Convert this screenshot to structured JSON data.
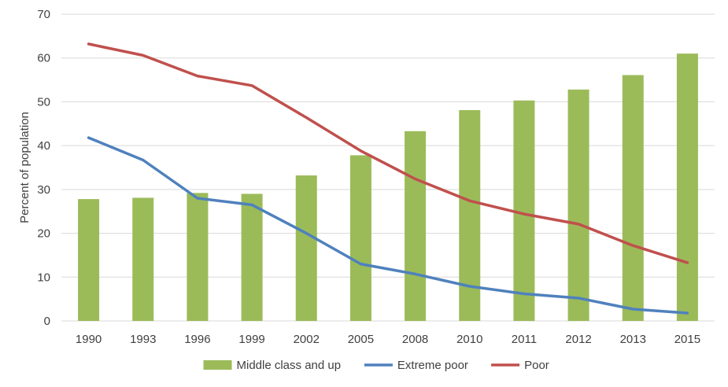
{
  "chart_data": {
    "type": "bar",
    "categories": [
      "1990",
      "1993",
      "1996",
      "1999",
      "2002",
      "2005",
      "2008",
      "2010",
      "2011",
      "2012",
      "2013",
      "2015"
    ],
    "series": [
      {
        "name": "Middle class and up",
        "type": "bar",
        "color": "#9BBB59",
        "values": [
          27.8,
          28.1,
          29.2,
          29.0,
          33.2,
          37.8,
          43.3,
          48.1,
          50.3,
          52.8,
          56.1,
          61.0
        ]
      },
      {
        "name": "Extreme poor",
        "type": "line",
        "color": "#4F81BD",
        "values": [
          41.8,
          36.7,
          28.0,
          26.5,
          20.0,
          13.0,
          10.7,
          7.9,
          6.2,
          5.2,
          2.7,
          1.8
        ]
      },
      {
        "name": "Poor",
        "type": "line",
        "color": "#C0504D",
        "values": [
          63.2,
          60.6,
          55.9,
          53.7,
          46.4,
          38.8,
          32.4,
          27.4,
          24.4,
          22.1,
          17.2,
          13.3
        ]
      }
    ],
    "ylabel": "Percent of population",
    "ylim": [
      0,
      70
    ],
    "yticks": [
      0,
      10,
      20,
      30,
      40,
      50,
      60,
      70
    ],
    "grid": true,
    "legend_position": "bottom"
  }
}
